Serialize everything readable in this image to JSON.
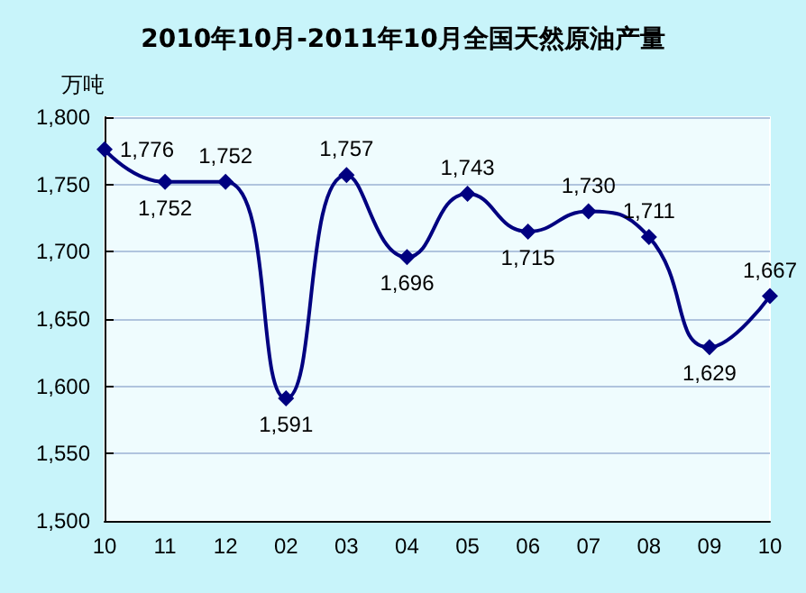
{
  "chart_data": {
    "type": "line",
    "title": "2010年10月-2011年10月全国天然原油产量",
    "ylabel": "万吨",
    "categories": [
      "10",
      "11",
      "12",
      "02",
      "03",
      "04",
      "05",
      "06",
      "07",
      "08",
      "09",
      "10"
    ],
    "series": [
      {
        "color": "#000080",
        "values": [
          1776,
          1752,
          1752,
          1591,
          1757,
          1696,
          1743,
          1715,
          1730,
          1711,
          1629,
          1667
        ],
        "value_labels": [
          "1,776",
          "1,752",
          "1,752",
          "1,591",
          "1,757",
          "1,696",
          "1,743",
          "1,715",
          "1,730",
          "1,711",
          "1,629",
          "1,667"
        ]
      }
    ],
    "ylim": [
      1500,
      1800
    ],
    "yticks": [
      {
        "value": 1500,
        "label": "1,500"
      },
      {
        "value": 1550,
        "label": "1,550"
      },
      {
        "value": 1600,
        "label": "1,600"
      },
      {
        "value": 1650,
        "label": "1,650"
      },
      {
        "value": 1700,
        "label": "1,700"
      },
      {
        "value": 1750,
        "label": "1,750"
      },
      {
        "value": 1800,
        "label": "1,800"
      }
    ],
    "grid": "y",
    "marker": "diamond",
    "line_style": "solid"
  }
}
